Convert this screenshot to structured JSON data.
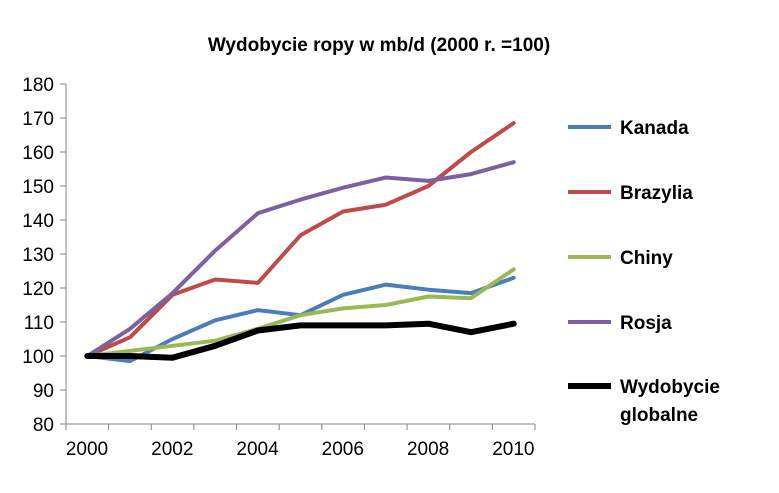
{
  "chart_data": {
    "type": "line",
    "title": "Wydobycie ropy w mb/d (2000 r. =100)",
    "xlabel": "",
    "ylabel": "",
    "x": [
      2000,
      2001,
      2002,
      2003,
      2004,
      2005,
      2006,
      2007,
      2008,
      2009,
      2010
    ],
    "x_ticks": [
      "2000",
      "2002",
      "2004",
      "2006",
      "2008",
      "2010"
    ],
    "xlim": [
      2000,
      2011
    ],
    "ylim": [
      80,
      180
    ],
    "y_ticks": [
      "80",
      "90",
      "100",
      "110",
      "120",
      "130",
      "140",
      "150",
      "160",
      "170",
      "180"
    ],
    "grid": false,
    "legend_position": "right",
    "series": [
      {
        "name": "Kanada",
        "color": "#4a7ebb",
        "values": [
          100,
          98.5,
          105,
          110.5,
          113.5,
          112,
          118,
          121,
          119.5,
          118.5,
          123
        ]
      },
      {
        "name": "Brazylia",
        "color": "#be4b48",
        "values": [
          100,
          105.5,
          118,
          122.5,
          121.5,
          135.5,
          142.5,
          144.5,
          150,
          160,
          168.5
        ]
      },
      {
        "name": "Chiny",
        "color": "#98b954",
        "values": [
          100,
          101.5,
          103,
          104.5,
          108,
          112,
          114,
          115,
          117.5,
          117,
          125.5
        ]
      },
      {
        "name": "Rosja",
        "color": "#7d60a0",
        "values": [
          100,
          108,
          118.5,
          131,
          142,
          146,
          149.5,
          152.5,
          151.5,
          153.5,
          157
        ]
      },
      {
        "name": "Wydobycie globalne",
        "name_lines": [
          "Wydobycie",
          "globalne"
        ],
        "color": "#000000",
        "values": [
          100,
          100,
          99.5,
          103,
          107.5,
          109,
          109,
          109,
          109.5,
          107,
          109.5
        ]
      }
    ]
  }
}
